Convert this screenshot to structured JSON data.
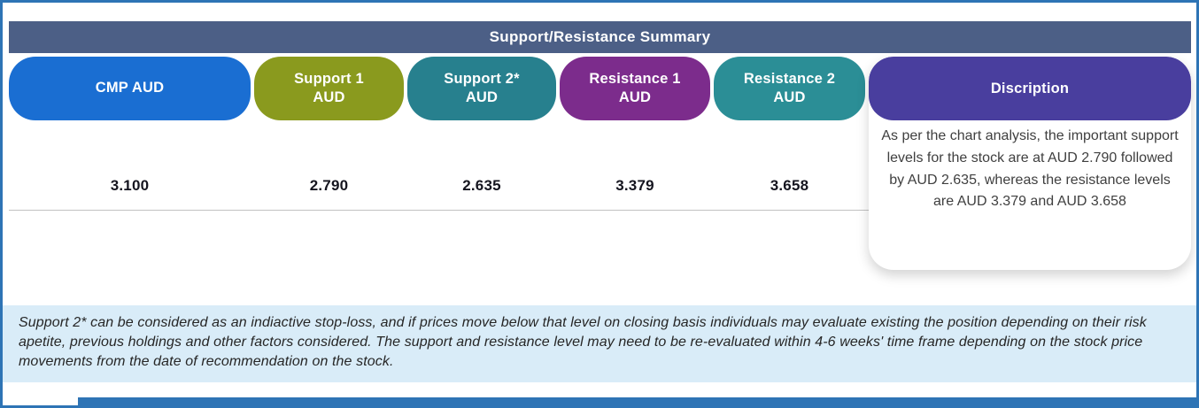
{
  "table": {
    "title": "Support/Resistance Summary",
    "title_bar_color": "#4c5f86",
    "columns": [
      {
        "line1": "CMP AUD",
        "line2": "",
        "value": "3.100",
        "color": "#1a6ed2"
      },
      {
        "line1": "Support 1",
        "line2": "AUD",
        "value": "2.790",
        "color": "#8a9a1e"
      },
      {
        "line1": "Support 2*",
        "line2": "AUD",
        "value": "2.635",
        "color": "#27808e"
      },
      {
        "line1": "Resistance 1",
        "line2": "AUD",
        "value": "3.379",
        "color": "#7c2c8c"
      },
      {
        "line1": "Resistance 2",
        "line2": "AUD",
        "value": "3.658",
        "color": "#2b8e96"
      }
    ],
    "description": {
      "header": "Discription",
      "color": "#493e9e",
      "text": "As per the chart analysis, the important support levels for the stock are at AUD 2.790  followed by AUD 2.635, whereas the resistance levels are AUD 3.379 and AUD 3.658"
    }
  },
  "footnote": {
    "bg_color": "#d9ecf8",
    "text": "Support 2* can be considered as an indiactive stop-loss, and if prices move below that level on closing basis individuals may evaluate existing the position depending on their risk apetite, previous holdings and other factors considered. The support and resistance level may need to be re-evaluated within 4-6 weeks' time frame depending on the stock price movements from  the date of recommendation on the stock."
  },
  "decor": {
    "frame_color": "#2e74b5",
    "accent_bar_color": "#2e74b5"
  }
}
